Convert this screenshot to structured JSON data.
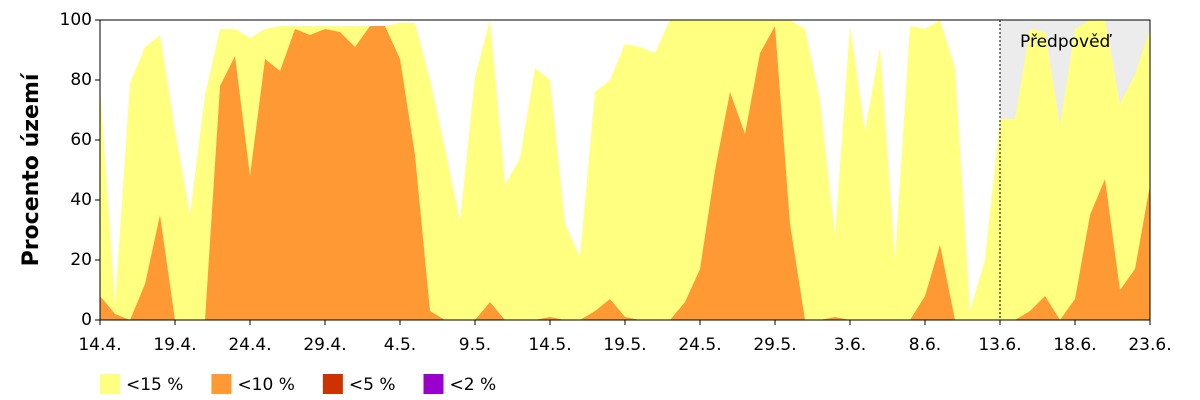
{
  "chart_data": {
    "type": "area",
    "y_label": "Procento území",
    "categories": [
      "14.4.",
      null,
      null,
      null,
      null,
      "19.4.",
      null,
      null,
      null,
      null,
      "24.4.",
      null,
      null,
      null,
      null,
      "29.4.",
      null,
      null,
      null,
      null,
      "4.5.",
      null,
      null,
      null,
      null,
      "9.5.",
      null,
      null,
      null,
      null,
      "14.5.",
      null,
      null,
      null,
      null,
      "19.5.",
      null,
      null,
      null,
      null,
      "24.5.",
      null,
      null,
      null,
      null,
      "29.5.",
      null,
      null,
      null,
      null,
      "3.6.",
      null,
      null,
      null,
      null,
      "8.6.",
      null,
      null,
      null,
      null,
      "13.6.",
      null,
      null,
      null,
      null,
      "18.6.",
      null,
      null,
      null,
      null,
      "23.6."
    ],
    "series": [
      {
        "name": "<15 %",
        "color": "#ffff80",
        "values": [
          78,
          5,
          79,
          91,
          95,
          63,
          35,
          75,
          97,
          97,
          94,
          97,
          98,
          98,
          98,
          98,
          98,
          98,
          98,
          98,
          99,
          99,
          80,
          57,
          33,
          81,
          100,
          45,
          54,
          84,
          80,
          32,
          21,
          76,
          80,
          92,
          91,
          89,
          100,
          100,
          100,
          100,
          100,
          100,
          100,
          100,
          100,
          97,
          73,
          28,
          98,
          63,
          91,
          20,
          98,
          97,
          100,
          84,
          3,
          20,
          67,
          67,
          97,
          96,
          65,
          97,
          100,
          100,
          72,
          82,
          97
        ]
      },
      {
        "name": "<10 %",
        "color": "#ff9933",
        "values": [
          8,
          2,
          0,
          12,
          35,
          0,
          0,
          0,
          78,
          88,
          48,
          87,
          83,
          97,
          95,
          97,
          96,
          91,
          98,
          98,
          87,
          55,
          3,
          0,
          0,
          0,
          6,
          0,
          0,
          0,
          1,
          0,
          0,
          3,
          7,
          1,
          0,
          0,
          0,
          6,
          17,
          50,
          76,
          62,
          89,
          98,
          32,
          0,
          0,
          1,
          0,
          0,
          0,
          0,
          0,
          8,
          25,
          0,
          0,
          0,
          0,
          0,
          3,
          8,
          0,
          7,
          35,
          47,
          10,
          17,
          45
        ]
      },
      {
        "name": "<5 %",
        "color": "#cc3300",
        "values": [
          0,
          0,
          0,
          0,
          0,
          0,
          0,
          0,
          0,
          0,
          0,
          0,
          0,
          0,
          0,
          0,
          0,
          0,
          0,
          0,
          0,
          0,
          0,
          0,
          0,
          0,
          0,
          0,
          0,
          0,
          0,
          0,
          0,
          0,
          0,
          0,
          0,
          0,
          0,
          0,
          0,
          0,
          0,
          0,
          0,
          0,
          0,
          0,
          0,
          0,
          0,
          0,
          0,
          0,
          0,
          0,
          0,
          0,
          0,
          0,
          0,
          0,
          0,
          0,
          0,
          0,
          0,
          0,
          0,
          0,
          0
        ]
      },
      {
        "name": "<2 %",
        "color": "#9900cc",
        "values": [
          0,
          0,
          0,
          0,
          0,
          0,
          0,
          0,
          0,
          0,
          0,
          0,
          0,
          0,
          0,
          0,
          0,
          0,
          0,
          0,
          0,
          0,
          0,
          0,
          0,
          0,
          0,
          0,
          0,
          0,
          0,
          0,
          0,
          0,
          0,
          0,
          0,
          0,
          0,
          0,
          0,
          0,
          0,
          0,
          0,
          0,
          0,
          0,
          0,
          0,
          0,
          0,
          0,
          0,
          0,
          0,
          0,
          0,
          0,
          0,
          0,
          0,
          0,
          0,
          0,
          0,
          0,
          0,
          0,
          0,
          0
        ]
      }
    ],
    "annotation": {
      "text": "Předpověď",
      "at": "13.6."
    },
    "ylim": [
      0,
      100
    ],
    "yticks": [
      0,
      20,
      40,
      60,
      80,
      100
    ],
    "legend": "bottom"
  }
}
